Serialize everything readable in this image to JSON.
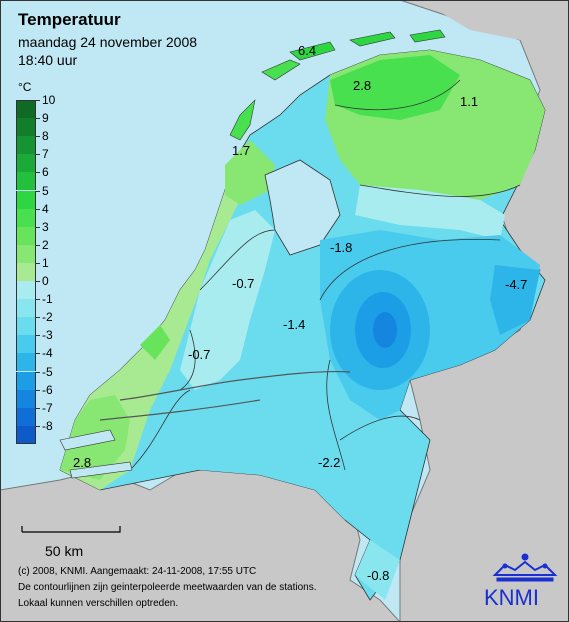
{
  "title": "Temperatuur",
  "date": "maandag 24 november 2008",
  "time": "18:40 uur",
  "legend": {
    "unit": "°C",
    "levels": [
      {
        "label": "10",
        "color": "#0f6a24"
      },
      {
        "label": "9",
        "color": "#127d2b"
      },
      {
        "label": "8",
        "color": "#169332"
      },
      {
        "label": "7",
        "color": "#1aaa37"
      },
      {
        "label": "6",
        "color": "#22c03c"
      },
      {
        "label": "5",
        "color": "#2ed742"
      },
      {
        "label": "4",
        "color": "#48e04e"
      },
      {
        "label": "3",
        "color": "#68e35c"
      },
      {
        "label": "2",
        "color": "#88e673"
      },
      {
        "label": "1",
        "color": "#a8ea91"
      },
      {
        "label": "0",
        "color": "#a8ecf0"
      },
      {
        "label": "-1",
        "color": "#8ae6ee"
      },
      {
        "label": "-2",
        "color": "#6adcee"
      },
      {
        "label": "-3",
        "color": "#48cbec"
      },
      {
        "label": "-4",
        "color": "#2db5ea"
      },
      {
        "label": "-5",
        "color": "#1c9ee6"
      },
      {
        "label": "-6",
        "color": "#1486e0"
      },
      {
        "label": "-7",
        "color": "#106fd6"
      },
      {
        "label": "-8",
        "color": "#0d5ac8"
      }
    ]
  },
  "station_values": [
    "6.4",
    "2.8",
    "1.1",
    "1.7",
    "-1.8",
    "-4.7",
    "-0.7",
    "-1.4",
    "-0.7",
    "2.8",
    "-2.2",
    "-0.8"
  ],
  "scale_label": "50 km",
  "footer": [
    "(c) 2008, KNMI. Aangemaakt: 24-11-2008, 17:55 UTC",
    "De contourlijnen zijn geinterpoleerde meetwaarden van de stations.",
    "Lokaal kunnen verschillen optreden."
  ],
  "logo_text": "KNMI"
}
